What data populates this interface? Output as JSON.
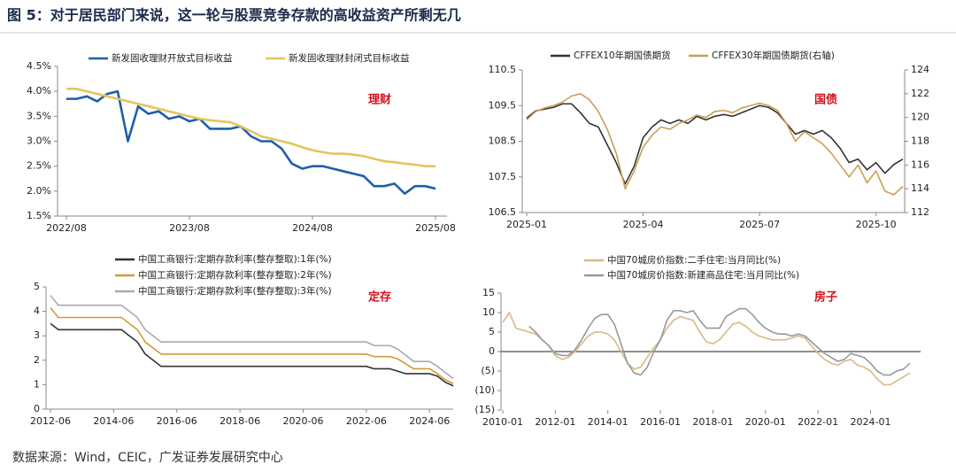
{
  "title": "图 5：对于居民部门来说，这一轮与股票竞争存款的高收益资产所剩无几",
  "source": "数据来源：Wind，CEIC，广发证券发展研究中心",
  "chart_data": [
    {
      "type": "line",
      "annotation": "理财",
      "categories": [
        "2022/08",
        null,
        null,
        null,
        null,
        null,
        null,
        null,
        null,
        null,
        null,
        null,
        "2023/08",
        null,
        null,
        null,
        null,
        null,
        null,
        null,
        null,
        null,
        null,
        null,
        "2024/08",
        null,
        null,
        null,
        null,
        null,
        null,
        null,
        null,
        null,
        null,
        null,
        "2025/08"
      ],
      "series": [
        {
          "name": "新发固收理财开放式目标收益",
          "color": "#1f5fa8",
          "values": [
            3.85,
            3.85,
            3.9,
            3.8,
            3.95,
            4.0,
            3.0,
            3.7,
            3.55,
            3.6,
            3.45,
            3.5,
            3.4,
            3.45,
            3.25,
            3.25,
            3.25,
            3.3,
            3.1,
            3.0,
            3.0,
            2.85,
            2.55,
            2.45,
            2.5,
            2.5,
            2.45,
            2.4,
            2.35,
            2.3,
            2.1,
            2.1,
            2.15,
            1.95,
            2.1,
            2.1,
            2.05
          ]
        },
        {
          "name": "新发固收理财封闭式目标收益",
          "color": "#e3c55f",
          "values": [
            4.05,
            4.05,
            4.0,
            3.95,
            3.9,
            3.85,
            3.8,
            3.75,
            3.7,
            3.65,
            3.6,
            3.55,
            3.5,
            3.45,
            3.42,
            3.4,
            3.38,
            3.3,
            3.2,
            3.1,
            3.05,
            3.0,
            2.95,
            2.88,
            2.82,
            2.78,
            2.75,
            2.75,
            2.73,
            2.7,
            2.65,
            2.6,
            2.58,
            2.55,
            2.53,
            2.5,
            2.5
          ]
        }
      ],
      "ylim": [
        1.5,
        4.5
      ],
      "yticks": [
        {
          "value": 1.5,
          "label": "1.5%"
        },
        {
          "value": 2.0,
          "label": "2.0%"
        },
        {
          "value": 2.5,
          "label": "2.5%"
        },
        {
          "value": 3.0,
          "label": "3.0%"
        },
        {
          "value": 3.5,
          "label": "3.5%"
        },
        {
          "value": 4.0,
          "label": "4.0%"
        },
        {
          "value": 4.5,
          "label": "4.5%"
        }
      ]
    },
    {
      "type": "line",
      "annotation": "国债",
      "categories": [
        "2025-01",
        null,
        null,
        null,
        null,
        null,
        null,
        null,
        null,
        null,
        null,
        null,
        null,
        "2025-04",
        null,
        null,
        null,
        null,
        null,
        null,
        null,
        null,
        null,
        null,
        null,
        null,
        "2025-07",
        null,
        null,
        null,
        null,
        null,
        null,
        null,
        null,
        null,
        null,
        null,
        null,
        "2025-10",
        null,
        null,
        null
      ],
      "series": [
        {
          "name": "CFFEX10年期国债期货",
          "color": "#333333",
          "values": [
            109.15,
            109.35,
            109.4,
            109.45,
            109.55,
            109.55,
            109.3,
            109.0,
            108.9,
            108.4,
            107.9,
            107.3,
            107.8,
            108.6,
            108.9,
            109.1,
            109.0,
            109.1,
            109.0,
            109.2,
            109.1,
            109.2,
            109.25,
            109.2,
            109.3,
            109.4,
            109.5,
            109.45,
            109.3,
            109.0,
            108.7,
            108.8,
            108.7,
            108.8,
            108.6,
            108.3,
            107.9,
            108.0,
            107.7,
            107.9,
            107.6,
            107.85,
            108.0
          ]
        },
        {
          "name": "CFFEX30年期国债期货(右轴)",
          "color": "#c9a052",
          "axis": "y2",
          "values": [
            119.8,
            120.5,
            120.8,
            121.0,
            121.3,
            121.8,
            122.0,
            121.5,
            120.5,
            119.0,
            117.0,
            114.0,
            115.5,
            117.5,
            118.5,
            119.2,
            119.0,
            119.5,
            119.8,
            120.2,
            120.0,
            120.5,
            120.6,
            120.4,
            120.8,
            121.0,
            121.2,
            121.0,
            120.6,
            119.5,
            118.0,
            118.8,
            118.3,
            117.8,
            117.0,
            116.0,
            115.0,
            116.0,
            114.5,
            115.5,
            113.8,
            113.5,
            114.2
          ]
        }
      ],
      "ylim": [
        106.5,
        110.5
      ],
      "yticks": [
        106.5,
        107.5,
        108.5,
        109.5,
        110.5
      ],
      "y2lim": [
        112,
        124
      ],
      "y2ticks": [
        112,
        114,
        116,
        118,
        120,
        122,
        124
      ]
    },
    {
      "type": "line",
      "annotation": "定存",
      "categories": [
        "2012-06",
        null,
        null,
        null,
        null,
        null,
        null,
        null,
        "2014-06",
        null,
        null,
        null,
        null,
        null,
        null,
        null,
        "2016-06",
        null,
        null,
        null,
        null,
        null,
        null,
        null,
        "2018-06",
        null,
        null,
        null,
        null,
        null,
        null,
        null,
        "2020-06",
        null,
        null,
        null,
        null,
        null,
        null,
        null,
        "2022-06",
        null,
        null,
        null,
        null,
        null,
        null,
        null,
        "2024-06",
        null,
        null,
        null
      ],
      "series": [
        {
          "name": "中国工商银行:定期存款利率(整存整取):1年(%)",
          "color": "#333333",
          "values": [
            3.5,
            3.25,
            3.25,
            3.25,
            3.25,
            3.25,
            3.25,
            3.25,
            3.25,
            3.25,
            3.0,
            2.75,
            2.25,
            2.0,
            1.75,
            1.75,
            1.75,
            1.75,
            1.75,
            1.75,
            1.75,
            1.75,
            1.75,
            1.75,
            1.75,
            1.75,
            1.75,
            1.75,
            1.75,
            1.75,
            1.75,
            1.75,
            1.75,
            1.75,
            1.75,
            1.75,
            1.75,
            1.75,
            1.75,
            1.75,
            1.75,
            1.65,
            1.65,
            1.65,
            1.55,
            1.45,
            1.45,
            1.45,
            1.45,
            1.35,
            1.1,
            0.95
          ]
        },
        {
          "name": "中国工商银行:定期存款利率(整存整取):2年(%)",
          "color": "#d19a3a",
          "values": [
            4.15,
            3.75,
            3.75,
            3.75,
            3.75,
            3.75,
            3.75,
            3.75,
            3.75,
            3.75,
            3.5,
            3.25,
            2.75,
            2.5,
            2.25,
            2.25,
            2.25,
            2.25,
            2.25,
            2.25,
            2.25,
            2.25,
            2.25,
            2.25,
            2.25,
            2.25,
            2.25,
            2.25,
            2.25,
            2.25,
            2.25,
            2.25,
            2.25,
            2.25,
            2.25,
            2.25,
            2.25,
            2.25,
            2.25,
            2.25,
            2.25,
            2.15,
            2.15,
            2.15,
            2.05,
            1.85,
            1.65,
            1.65,
            1.65,
            1.45,
            1.2,
            1.05
          ]
        },
        {
          "name": "中国工商银行:定期存款利率(整存整取):3年(%)",
          "color": "#aaaaaa",
          "values": [
            4.65,
            4.25,
            4.25,
            4.25,
            4.25,
            4.25,
            4.25,
            4.25,
            4.25,
            4.25,
            4.0,
            3.75,
            3.25,
            3.0,
            2.75,
            2.75,
            2.75,
            2.75,
            2.75,
            2.75,
            2.75,
            2.75,
            2.75,
            2.75,
            2.75,
            2.75,
            2.75,
            2.75,
            2.75,
            2.75,
            2.75,
            2.75,
            2.75,
            2.75,
            2.75,
            2.75,
            2.75,
            2.75,
            2.75,
            2.75,
            2.75,
            2.6,
            2.6,
            2.6,
            2.45,
            2.2,
            1.95,
            1.95,
            1.95,
            1.75,
            1.5,
            1.25
          ]
        }
      ],
      "ylim": [
        0,
        5
      ],
      "yticks": [
        0,
        1,
        2,
        3,
        4,
        5
      ]
    },
    {
      "type": "line",
      "annotation": "房子",
      "categories": [
        "2010-01",
        null,
        null,
        null,
        null,
        null,
        null,
        null,
        "2012-01",
        null,
        null,
        null,
        null,
        null,
        null,
        null,
        "2014-01",
        null,
        null,
        null,
        null,
        null,
        null,
        null,
        "2016-01",
        null,
        null,
        null,
        null,
        null,
        null,
        null,
        "2018-01",
        null,
        null,
        null,
        null,
        null,
        null,
        null,
        "2020-01",
        null,
        null,
        null,
        null,
        null,
        null,
        null,
        "2022-01",
        null,
        null,
        null,
        null,
        null,
        null,
        null,
        "2024-01",
        null,
        null,
        null,
        null,
        null,
        null
      ],
      "series": [
        {
          "name": "中国70城房价指数:二手住宅:当月同比(%)",
          "color": "#d9b98a",
          "values": [
            7.5,
            10,
            6,
            5.5,
            5,
            4.5,
            3,
            1.5,
            -1,
            -2,
            -1.5,
            0,
            2,
            4,
            5,
            5,
            4.5,
            3,
            0,
            -3,
            -4.5,
            -4,
            -1.5,
            1,
            3,
            6,
            8,
            9,
            8.5,
            8,
            5,
            2.5,
            2,
            3,
            5,
            7,
            7.5,
            6.5,
            5,
            4,
            3.5,
            3,
            3,
            3,
            3.5,
            4,
            3.5,
            1.5,
            -0.5,
            -2,
            -3,
            -3.5,
            -2.5,
            -2,
            -3.5,
            -4,
            -5,
            -7,
            -8.5,
            -8.5,
            -7.5,
            -6.5,
            -5.5
          ]
        },
        {
          "name": "中国70城房价指数:新建商品住宅:当月同比(%)",
          "color": "#999999",
          "values": [
            null,
            null,
            null,
            null,
            6.5,
            5,
            3,
            1.5,
            -0.5,
            -1,
            -1,
            0.5,
            3,
            6,
            8.5,
            9.5,
            9.5,
            7,
            2,
            -3,
            -5.5,
            -6,
            -4,
            0,
            3,
            8,
            10.5,
            10.5,
            10,
            10.5,
            8,
            6,
            6,
            6,
            9,
            10,
            11,
            11,
            9.5,
            7.5,
            6,
            5,
            4.5,
            4.5,
            4,
            4.5,
            4,
            2.5,
            1,
            -0.5,
            -1.5,
            -2.5,
            -2,
            -0.5,
            -1,
            -1.5,
            -3,
            -5,
            -6,
            -6,
            -5,
            -4.5,
            -3
          ]
        }
      ],
      "ylim": [
        -15,
        15
      ],
      "yticks": [
        {
          "value": -15,
          "label": "(15)"
        },
        {
          "value": -10,
          "label": "(10)"
        },
        {
          "value": -5,
          "label": "(5)"
        },
        0,
        5,
        10,
        15
      ]
    }
  ]
}
